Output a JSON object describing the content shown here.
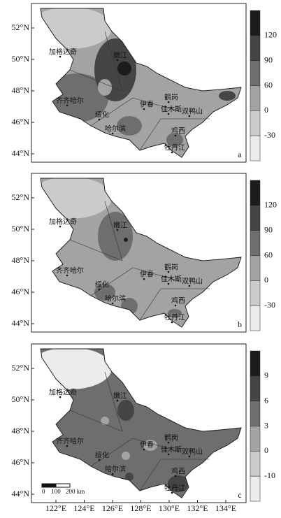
{
  "panels": [
    {
      "label": "a",
      "colorbar_ticks": [
        120,
        90,
        60,
        0,
        -30
      ]
    },
    {
      "label": "b",
      "colorbar_ticks": [
        120,
        90,
        60,
        0,
        -30
      ]
    },
    {
      "label": "c",
      "colorbar_ticks": [
        9,
        6,
        3,
        0,
        -10
      ]
    }
  ],
  "colorbar_colors": [
    "#1c1c1c",
    "#454545",
    "#6e6e6e",
    "#a3a3a3",
    "#cbcbcb",
    "#ececec"
  ],
  "lat_labels": [
    "52°N",
    "50°N",
    "48°N",
    "46°N",
    "44°N"
  ],
  "lon_labels": [
    "122°E",
    "124°E",
    "126°E",
    "128°E",
    "130°E",
    "132°E",
    "134°E"
  ],
  "cities": [
    "加格达奇",
    "嫩江",
    "齐齐哈尔",
    "绥化",
    "哈尔滨",
    "伊春",
    "鹤岗",
    "佳木斯",
    "双鸭山",
    "鸡西",
    "牡丹江"
  ],
  "scale_bar": [
    "0",
    "100",
    "200 km"
  ]
}
